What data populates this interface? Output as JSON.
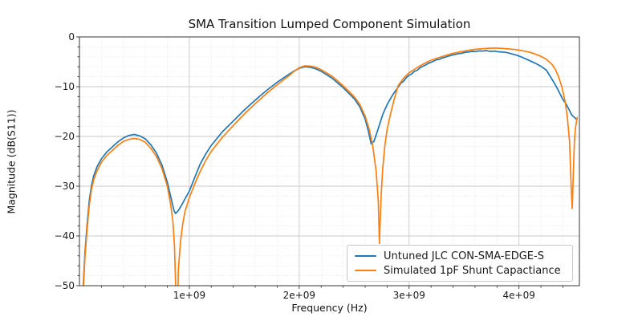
{
  "chart_data": {
    "type": "line",
    "title": "SMA Transition Lumped Component Simulation",
    "xlabel": "Frequency (Hz)",
    "ylabel": "Magnitude (dB(S11))",
    "points_unit": [
      "GHz",
      "dB"
    ],
    "xlim_ghz": [
      0,
      4.55
    ],
    "ylim_db": [
      -50,
      0
    ],
    "grid": "major solid, minor dotted, both axes",
    "legend_position": "lower right",
    "x_axis": {
      "ticks": [
        {
          "value": 1,
          "label": "1e+09"
        },
        {
          "value": 2,
          "label": "2e+09"
        },
        {
          "value": 3,
          "label": "3e+09"
        },
        {
          "value": 4,
          "label": "4e+09"
        }
      ],
      "minor_step_ghz": 0.2
    },
    "y_axis": {
      "ticks": [
        {
          "value": 0,
          "label": "0"
        },
        {
          "value": -10,
          "label": "−10"
        },
        {
          "value": -20,
          "label": "−20"
        },
        {
          "value": -30,
          "label": "−30"
        },
        {
          "value": -40,
          "label": "−40"
        },
        {
          "value": -50,
          "label": "−50"
        }
      ],
      "minor_step_db": 2
    },
    "series": [
      {
        "name": "Untuned JLC CON-SMA-EDGE-S",
        "color": "#1f77b4",
        "points": [
          [
            0.03,
            -52
          ],
          [
            0.05,
            -43.5
          ],
          [
            0.07,
            -37.6
          ],
          [
            0.09,
            -32.8
          ],
          [
            0.11,
            -29.8
          ],
          [
            0.13,
            -27.9
          ],
          [
            0.16,
            -26.1
          ],
          [
            0.2,
            -24.5
          ],
          [
            0.25,
            -23.1
          ],
          [
            0.3,
            -22.1
          ],
          [
            0.35,
            -21.1
          ],
          [
            0.4,
            -20.3
          ],
          [
            0.45,
            -19.8
          ],
          [
            0.5,
            -19.6
          ],
          [
            0.55,
            -19.9
          ],
          [
            0.6,
            -20.5
          ],
          [
            0.65,
            -21.7
          ],
          [
            0.7,
            -23.3
          ],
          [
            0.75,
            -25.7
          ],
          [
            0.8,
            -29.2
          ],
          [
            0.83,
            -32.0
          ],
          [
            0.86,
            -34.9
          ],
          [
            0.875,
            -35.5
          ],
          [
            0.9,
            -34.9
          ],
          [
            0.93,
            -33.8
          ],
          [
            0.96,
            -32.6
          ],
          [
            1.0,
            -31.0
          ],
          [
            1.05,
            -28.2
          ],
          [
            1.1,
            -25.5
          ],
          [
            1.15,
            -23.5
          ],
          [
            1.2,
            -21.8
          ],
          [
            1.3,
            -19.1
          ],
          [
            1.4,
            -16.9
          ],
          [
            1.5,
            -14.7
          ],
          [
            1.6,
            -12.7
          ],
          [
            1.7,
            -10.8
          ],
          [
            1.8,
            -9.1
          ],
          [
            1.9,
            -7.6
          ],
          [
            1.95,
            -6.9
          ],
          [
            2.0,
            -6.3
          ],
          [
            2.05,
            -6.0
          ],
          [
            2.1,
            -6.1
          ],
          [
            2.15,
            -6.4
          ],
          [
            2.2,
            -6.9
          ],
          [
            2.3,
            -8.3
          ],
          [
            2.4,
            -10.2
          ],
          [
            2.5,
            -12.4
          ],
          [
            2.55,
            -14.0
          ],
          [
            2.6,
            -16.5
          ],
          [
            2.63,
            -19.0
          ],
          [
            2.655,
            -21.5
          ],
          [
            2.68,
            -21.0
          ],
          [
            2.72,
            -18.4
          ],
          [
            2.76,
            -15.6
          ],
          [
            2.8,
            -13.6
          ],
          [
            2.85,
            -11.7
          ],
          [
            2.9,
            -10.1
          ],
          [
            2.925,
            -9.3
          ],
          [
            2.95,
            -8.9
          ],
          [
            2.975,
            -8.2
          ],
          [
            3.0,
            -7.7
          ],
          [
            3.025,
            -7.4
          ],
          [
            3.05,
            -6.9
          ],
          [
            3.075,
            -6.7
          ],
          [
            3.1,
            -6.2
          ],
          [
            3.125,
            -5.9
          ],
          [
            3.15,
            -5.65
          ],
          [
            3.175,
            -5.3
          ],
          [
            3.2,
            -5.1
          ],
          [
            3.225,
            -4.85
          ],
          [
            3.25,
            -4.6
          ],
          [
            3.275,
            -4.5
          ],
          [
            3.3,
            -4.25
          ],
          [
            3.325,
            -4.1
          ],
          [
            3.35,
            -3.9
          ],
          [
            3.375,
            -3.75
          ],
          [
            3.4,
            -3.6
          ],
          [
            3.425,
            -3.5
          ],
          [
            3.45,
            -3.35
          ],
          [
            3.475,
            -3.3
          ],
          [
            3.5,
            -3.15
          ],
          [
            3.525,
            -3.05
          ],
          [
            3.55,
            -3.0
          ],
          [
            3.575,
            -2.9
          ],
          [
            3.6,
            -2.95
          ],
          [
            3.625,
            -2.85
          ],
          [
            3.65,
            -2.8
          ],
          [
            3.675,
            -2.85
          ],
          [
            3.7,
            -2.75
          ],
          [
            3.725,
            -2.85
          ],
          [
            3.75,
            -2.9
          ],
          [
            3.775,
            -2.85
          ],
          [
            3.8,
            -2.95
          ],
          [
            3.825,
            -3.0
          ],
          [
            3.85,
            -3.05
          ],
          [
            3.875,
            -3.1
          ],
          [
            3.9,
            -3.2
          ],
          [
            3.925,
            -3.35
          ],
          [
            3.95,
            -3.5
          ],
          [
            3.975,
            -3.65
          ],
          [
            4.0,
            -3.85
          ],
          [
            4.025,
            -4.05
          ],
          [
            4.05,
            -4.3
          ],
          [
            4.075,
            -4.55
          ],
          [
            4.1,
            -4.8
          ],
          [
            4.125,
            -5.05
          ],
          [
            4.15,
            -5.3
          ],
          [
            4.175,
            -5.6
          ],
          [
            4.2,
            -5.9
          ],
          [
            4.225,
            -6.3
          ],
          [
            4.25,
            -6.7
          ],
          [
            4.275,
            -7.6
          ],
          [
            4.3,
            -8.5
          ],
          [
            4.325,
            -9.4
          ],
          [
            4.35,
            -10.4
          ],
          [
            4.375,
            -11.5
          ],
          [
            4.4,
            -12.6
          ],
          [
            4.42,
            -13.2
          ],
          [
            4.44,
            -13.9
          ],
          [
            4.46,
            -14.8
          ],
          [
            4.48,
            -15.7
          ],
          [
            4.5,
            -16.1
          ],
          [
            4.52,
            -16.5
          ]
        ]
      },
      {
        "name": "Simulated 1pF Shunt Capactiance",
        "color": "#ff7f0e",
        "points": [
          [
            0.03,
            -53
          ],
          [
            0.05,
            -44.5
          ],
          [
            0.07,
            -38.6
          ],
          [
            0.09,
            -33.8
          ],
          [
            0.11,
            -30.6
          ],
          [
            0.13,
            -28.7
          ],
          [
            0.16,
            -26.9
          ],
          [
            0.2,
            -25.2
          ],
          [
            0.25,
            -23.8
          ],
          [
            0.3,
            -22.8
          ],
          [
            0.35,
            -21.8
          ],
          [
            0.4,
            -21.0
          ],
          [
            0.45,
            -20.6
          ],
          [
            0.5,
            -20.4
          ],
          [
            0.55,
            -20.6
          ],
          [
            0.6,
            -21.2
          ],
          [
            0.65,
            -22.4
          ],
          [
            0.7,
            -24.0
          ],
          [
            0.75,
            -26.4
          ],
          [
            0.8,
            -30.0
          ],
          [
            0.83,
            -33.6
          ],
          [
            0.85,
            -37.0
          ],
          [
            0.865,
            -42.0
          ],
          [
            0.876,
            -50.0
          ],
          [
            0.878,
            -53
          ],
          [
            0.895,
            -53
          ],
          [
            0.9,
            -47.0
          ],
          [
            0.92,
            -41.0
          ],
          [
            0.94,
            -37.6
          ],
          [
            0.96,
            -35.2
          ],
          [
            1.0,
            -32.3
          ],
          [
            1.05,
            -29.5
          ],
          [
            1.1,
            -27.0
          ],
          [
            1.15,
            -24.8
          ],
          [
            1.2,
            -23.0
          ],
          [
            1.3,
            -20.2
          ],
          [
            1.4,
            -17.8
          ],
          [
            1.5,
            -15.5
          ],
          [
            1.6,
            -13.4
          ],
          [
            1.7,
            -11.4
          ],
          [
            1.8,
            -9.6
          ],
          [
            1.9,
            -7.9
          ],
          [
            1.95,
            -7.0
          ],
          [
            2.0,
            -6.2
          ],
          [
            2.05,
            -5.8
          ],
          [
            2.1,
            -5.85
          ],
          [
            2.15,
            -6.1
          ],
          [
            2.2,
            -6.6
          ],
          [
            2.3,
            -7.9
          ],
          [
            2.4,
            -9.8
          ],
          [
            2.5,
            -12.0
          ],
          [
            2.55,
            -13.5
          ],
          [
            2.6,
            -15.9
          ],
          [
            2.64,
            -18.8
          ],
          [
            2.67,
            -22.0
          ],
          [
            2.7,
            -27.0
          ],
          [
            2.72,
            -33.0
          ],
          [
            2.73,
            -41.5
          ],
          [
            2.745,
            -32.0
          ],
          [
            2.76,
            -26.5
          ],
          [
            2.78,
            -21.8
          ],
          [
            2.8,
            -18.6
          ],
          [
            2.83,
            -15.6
          ],
          [
            2.86,
            -12.9
          ],
          [
            2.9,
            -9.8
          ],
          [
            2.95,
            -8.3
          ],
          [
            3.0,
            -7.2
          ],
          [
            3.05,
            -6.5
          ],
          [
            3.1,
            -5.8
          ],
          [
            3.15,
            -5.2
          ],
          [
            3.2,
            -4.7
          ],
          [
            3.25,
            -4.3
          ],
          [
            3.3,
            -3.95
          ],
          [
            3.35,
            -3.6
          ],
          [
            3.4,
            -3.3
          ],
          [
            3.45,
            -3.05
          ],
          [
            3.5,
            -2.85
          ],
          [
            3.55,
            -2.65
          ],
          [
            3.6,
            -2.5
          ],
          [
            3.65,
            -2.4
          ],
          [
            3.7,
            -2.3
          ],
          [
            3.75,
            -2.25
          ],
          [
            3.8,
            -2.25
          ],
          [
            3.85,
            -2.3
          ],
          [
            3.9,
            -2.4
          ],
          [
            3.95,
            -2.5
          ],
          [
            4.0,
            -2.65
          ],
          [
            4.05,
            -2.85
          ],
          [
            4.1,
            -3.1
          ],
          [
            4.15,
            -3.45
          ],
          [
            4.2,
            -3.9
          ],
          [
            4.25,
            -4.5
          ],
          [
            4.3,
            -5.5
          ],
          [
            4.33,
            -6.5
          ],
          [
            4.36,
            -8.0
          ],
          [
            4.39,
            -10.0
          ],
          [
            4.42,
            -13.0
          ],
          [
            4.44,
            -16.0
          ],
          [
            4.46,
            -21.0
          ],
          [
            4.475,
            -30.0
          ],
          [
            4.485,
            -34.5
          ],
          [
            4.495,
            -27.0
          ],
          [
            4.505,
            -21.0
          ],
          [
            4.515,
            -18.2
          ],
          [
            4.53,
            -16.2
          ]
        ]
      }
    ],
    "style": {
      "spine_color": "#333333",
      "major_grid_color": "#c8c8c8",
      "minor_grid_color": "#dddddd",
      "tick_color": "#333333",
      "line_width": 1.7
    }
  }
}
